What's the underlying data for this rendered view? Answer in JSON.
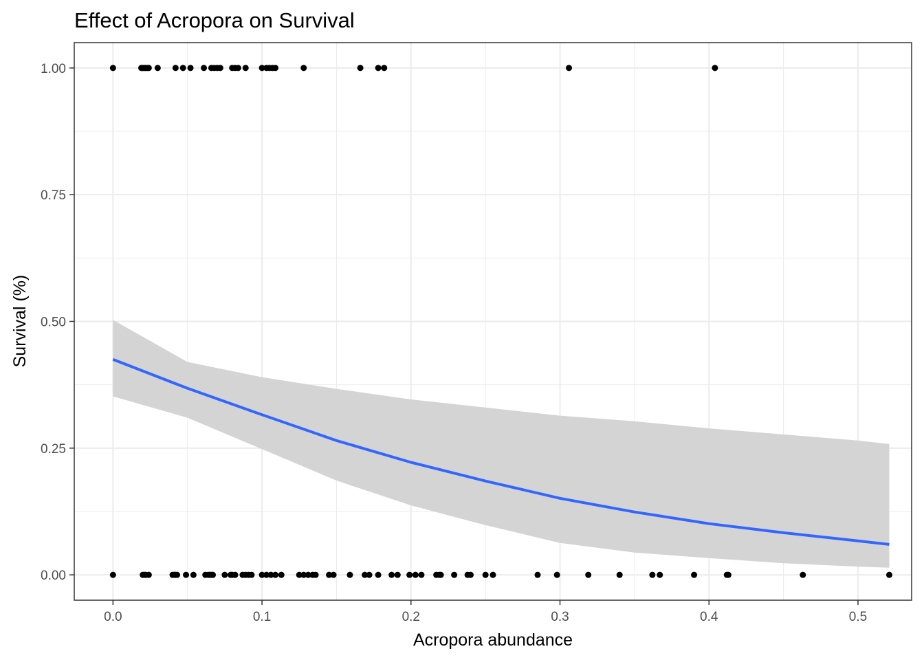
{
  "chart_data": {
    "type": "scatter",
    "title": "Effect of Acropora on Survival",
    "xlabel": "Acropora abundance",
    "ylabel": "Survival (%)",
    "xlim": [
      -0.026,
      0.536
    ],
    "ylim": [
      -0.05,
      1.05
    ],
    "x_ticks": [
      0.0,
      0.1,
      0.2,
      0.3,
      0.4,
      0.5
    ],
    "x_tick_labels": [
      "0.0",
      "0.1",
      "0.2",
      "0.3",
      "0.4",
      "0.5"
    ],
    "y_ticks": [
      0.0,
      0.25,
      0.5,
      0.75,
      1.0
    ],
    "y_tick_labels": [
      "0.00",
      "0.25",
      "0.50",
      "0.75",
      "1.00"
    ],
    "x_minor_ticks": [
      0.05,
      0.15,
      0.25,
      0.35,
      0.45
    ],
    "y_minor_ticks": [
      0.125,
      0.375,
      0.625,
      0.875
    ],
    "grid": true,
    "legend": "none",
    "colors": {
      "points": "#000000",
      "fit_line": "#3366ff",
      "ribbon": "#d4d4d4",
      "grid": "#ebebeb",
      "panel_border": "#333333",
      "tick_label": "#4d4d4d"
    },
    "points_survived": [
      0.0,
      0.019,
      0.02,
      0.021,
      0.022,
      0.023,
      0.024,
      0.03,
      0.042,
      0.047,
      0.052,
      0.061,
      0.066,
      0.068,
      0.07,
      0.072,
      0.08,
      0.082,
      0.084,
      0.089,
      0.1,
      0.103,
      0.105,
      0.107,
      0.109,
      0.128,
      0.166,
      0.178,
      0.182,
      0.306,
      0.404
    ],
    "points_died": [
      0.0,
      0.02,
      0.021,
      0.022,
      0.024,
      0.04,
      0.041,
      0.042,
      0.043,
      0.049,
      0.054,
      0.062,
      0.064,
      0.065,
      0.066,
      0.067,
      0.075,
      0.079,
      0.08,
      0.082,
      0.087,
      0.089,
      0.091,
      0.093,
      0.1,
      0.103,
      0.106,
      0.109,
      0.113,
      0.125,
      0.128,
      0.131,
      0.134,
      0.136,
      0.145,
      0.148,
      0.159,
      0.169,
      0.172,
      0.178,
      0.187,
      0.191,
      0.199,
      0.203,
      0.207,
      0.217,
      0.219,
      0.22,
      0.229,
      0.238,
      0.24,
      0.25,
      0.255,
      0.285,
      0.298,
      0.319,
      0.34,
      0.362,
      0.367,
      0.39,
      0.412,
      0.413,
      0.463,
      0.521
    ],
    "fit": {
      "x": [
        0.0,
        0.05,
        0.1,
        0.15,
        0.2,
        0.25,
        0.3,
        0.35,
        0.4,
        0.45,
        0.5,
        0.521
      ],
      "y": [
        0.425,
        0.368,
        0.316,
        0.265,
        0.222,
        0.185,
        0.151,
        0.124,
        0.101,
        0.083,
        0.067,
        0.06
      ],
      "lower": [
        0.352,
        0.31,
        0.248,
        0.186,
        0.137,
        0.098,
        0.063,
        0.044,
        0.033,
        0.023,
        0.016,
        0.014
      ],
      "upper": [
        0.503,
        0.42,
        0.39,
        0.367,
        0.346,
        0.33,
        0.314,
        0.303,
        0.289,
        0.277,
        0.265,
        0.258
      ]
    }
  }
}
